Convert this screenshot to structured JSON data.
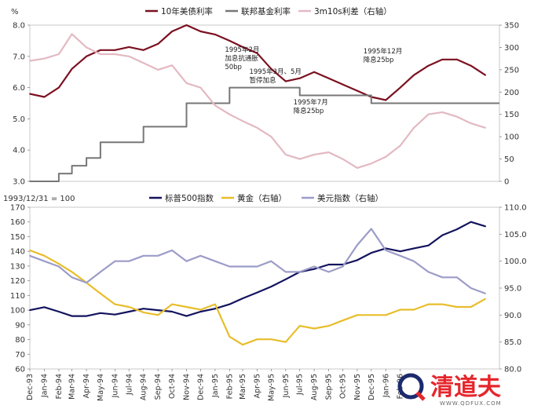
{
  "chart_data": [
    {
      "type": "line",
      "title": "",
      "yleft_unit": "%",
      "ylim": [
        3.0,
        8.0
      ],
      "yticks_left": [
        "3.0",
        "4.0",
        "5.0",
        "6.0",
        "7.0",
        "8.0"
      ],
      "y2lim": [
        0,
        350
      ],
      "yticks_right": [
        "0",
        "50",
        "100",
        "150",
        "200",
        "250",
        "300",
        "350"
      ],
      "legend_position": "top",
      "series": [
        {
          "name": "10年美债利率",
          "axis": "left",
          "color": "#7b1020",
          "x": [
            "1993-12",
            "1994-01",
            "1994-02",
            "1994-03",
            "1994-04",
            "1994-05",
            "1994-06",
            "1994-07",
            "1994-08",
            "1994-09",
            "1994-10",
            "1994-11",
            "1994-12",
            "1995-01",
            "1995-02",
            "1995-03",
            "1995-04",
            "1995-05",
            "1995-06",
            "1995-07",
            "1995-08",
            "1995-09",
            "1995-10",
            "1995-11",
            "1995-12",
            "1996-01",
            "1996-02",
            "1996-03",
            "1996-04",
            "1996-05",
            "1996-06",
            "1996-07",
            "1996-08"
          ],
          "y": [
            5.8,
            5.7,
            6.0,
            6.6,
            7.0,
            7.2,
            7.2,
            7.3,
            7.2,
            7.4,
            7.8,
            8.0,
            7.8,
            7.7,
            7.5,
            7.3,
            7.1,
            6.6,
            6.2,
            6.3,
            6.5,
            6.3,
            6.1,
            5.9,
            5.7,
            5.6,
            6.0,
            6.4,
            6.7,
            6.9,
            6.9,
            6.7,
            6.4
          ]
        },
        {
          "name": "联邦基金利率",
          "axis": "left",
          "color": "#777777",
          "step": true,
          "x": [
            "1993-12",
            "1994-02",
            "1994-03",
            "1994-04",
            "1994-05",
            "1994-08",
            "1994-11",
            "1995-02",
            "1995-07",
            "1995-12",
            "1996-08"
          ],
          "y": [
            3.0,
            3.25,
            3.5,
            3.75,
            4.25,
            4.75,
            5.5,
            6.0,
            5.75,
            5.5,
            5.5
          ]
        },
        {
          "name": "3m10s利差（右轴）",
          "axis": "right",
          "color": "#e3b9c2",
          "x": [
            "1993-12",
            "1994-01",
            "1994-02",
            "1994-03",
            "1994-04",
            "1994-05",
            "1994-06",
            "1994-07",
            "1994-08",
            "1994-09",
            "1994-10",
            "1994-11",
            "1994-12",
            "1995-01",
            "1995-02",
            "1995-03",
            "1995-04",
            "1995-05",
            "1995-06",
            "1995-07",
            "1995-08",
            "1995-09",
            "1995-10",
            "1995-11",
            "1995-12",
            "1996-01",
            "1996-02",
            "1996-03",
            "1996-04",
            "1996-05",
            "1996-06",
            "1996-07",
            "1996-08"
          ],
          "y": [
            270,
            275,
            285,
            330,
            300,
            285,
            285,
            280,
            265,
            250,
            260,
            220,
            210,
            170,
            150,
            135,
            120,
            100,
            60,
            50,
            60,
            65,
            50,
            30,
            40,
            55,
            80,
            120,
            150,
            155,
            145,
            130,
            120
          ]
        }
      ],
      "annotations": [
        {
          "lines": [
            "1995年2月",
            "加息抗通胀",
            "50bp"
          ],
          "x": "1995-02"
        },
        {
          "lines": [
            "1995年3月、5月",
            "暂停加息"
          ],
          "x": "1995-04"
        },
        {
          "lines": [
            "1995年7月",
            "降息25bp"
          ],
          "x": "1995-07"
        },
        {
          "lines": [
            "1995年12月",
            "降息25bp"
          ],
          "x": "1995-12"
        }
      ]
    },
    {
      "type": "line",
      "title": "",
      "base_label": "1993/12/31 = 100",
      "ylim": [
        60,
        170
      ],
      "yticks_left": [
        "60",
        "70",
        "80",
        "90",
        "100",
        "110",
        "120",
        "130",
        "140",
        "150",
        "160",
        "170"
      ],
      "y2lim": [
        80,
        110
      ],
      "yticks_right": [
        "80.0",
        "85.0",
        "90.0",
        "95.0",
        "100.0",
        "105.0",
        "110.0"
      ],
      "legend_position": "top",
      "series": [
        {
          "name": "标普500指数",
          "axis": "left",
          "color": "#13135e",
          "x": [
            "1993-12",
            "1994-01",
            "1994-02",
            "1994-03",
            "1994-04",
            "1994-05",
            "1994-06",
            "1994-07",
            "1994-08",
            "1994-09",
            "1994-10",
            "1994-11",
            "1994-12",
            "1995-01",
            "1995-02",
            "1995-03",
            "1995-04",
            "1995-05",
            "1995-06",
            "1995-07",
            "1995-08",
            "1995-09",
            "1995-10",
            "1995-11",
            "1995-12",
            "1996-01",
            "1996-02",
            "1996-03",
            "1996-04",
            "1996-05",
            "1996-06",
            "1996-07",
            "1996-08"
          ],
          "y": [
            100,
            102,
            99,
            96,
            96,
            98,
            97,
            99,
            101,
            100,
            99,
            96,
            99,
            101,
            104,
            108,
            112,
            116,
            121,
            126,
            128,
            131,
            131,
            134,
            139,
            142,
            140,
            142,
            144,
            151,
            155,
            160,
            157
          ]
        },
        {
          "name": "黄金（右轴）",
          "axis": "right",
          "color": "#e8bd2a",
          "x": [
            "1993-12",
            "1994-01",
            "1994-02",
            "1994-03",
            "1994-04",
            "1994-05",
            "1994-06",
            "1994-07",
            "1994-08",
            "1994-09",
            "1994-10",
            "1994-11",
            "1994-12",
            "1995-01",
            "1995-02",
            "1995-03",
            "1995-04",
            "1995-05",
            "1995-06",
            "1995-07",
            "1995-08",
            "1995-09",
            "1995-10",
            "1995-11",
            "1995-12",
            "1996-01",
            "1996-02",
            "1996-03",
            "1996-04",
            "1996-05",
            "1996-06",
            "1996-07",
            "1996-08"
          ],
          "y": [
            102,
            101,
            99.5,
            98,
            96,
            94,
            92,
            91.5,
            90.5,
            90,
            92,
            91.5,
            91,
            92,
            86,
            84.5,
            85.5,
            85.5,
            85,
            88,
            87.5,
            88,
            89,
            90,
            90,
            90,
            91,
            91,
            92,
            92,
            91.5,
            91.5,
            93
          ]
        },
        {
          "name": "美元指数（右轴）",
          "axis": "right",
          "color": "#9c9cc9",
          "x": [
            "1993-12",
            "1994-01",
            "1994-02",
            "1994-03",
            "1994-04",
            "1994-05",
            "1994-06",
            "1994-07",
            "1994-08",
            "1994-09",
            "1994-10",
            "1994-11",
            "1994-12",
            "1995-01",
            "1995-02",
            "1995-03",
            "1995-04",
            "1995-05",
            "1995-06",
            "1995-07",
            "1995-08",
            "1995-09",
            "1995-10",
            "1995-11",
            "1995-12",
            "1996-01",
            "1996-02",
            "1996-03",
            "1996-04",
            "1996-05",
            "1996-06",
            "1996-07",
            "1996-08"
          ],
          "y": [
            101,
            100,
            99,
            97,
            96,
            98,
            100,
            100,
            101,
            101,
            102,
            100,
            101,
            100,
            99,
            99,
            99,
            100,
            98,
            98,
            99,
            98,
            99,
            103,
            106,
            102,
            101,
            100,
            98,
            97,
            97,
            95,
            94
          ]
        }
      ],
      "xticks": [
        "Dec-93",
        "Jan-94",
        "Feb-94",
        "Mar-94",
        "Apr-94",
        "May-94",
        "Jun-94",
        "Jul-94",
        "Aug-94",
        "Sep-94",
        "Oct-94",
        "Nov-94",
        "Dec-94",
        "Jan-95",
        "Feb-95",
        "Mar-95",
        "Apr-95",
        "May-95",
        "Jun-95",
        "Jul-95",
        "Aug-95",
        "Sep-95",
        "Oct-95",
        "Nov-95",
        "Dec-95",
        "Jan-96",
        "Feb-96"
      ]
    }
  ],
  "watermark": {
    "text": "清道夫",
    "url": "WWW.QDFUX.COM",
    "color": "#e5262c"
  }
}
